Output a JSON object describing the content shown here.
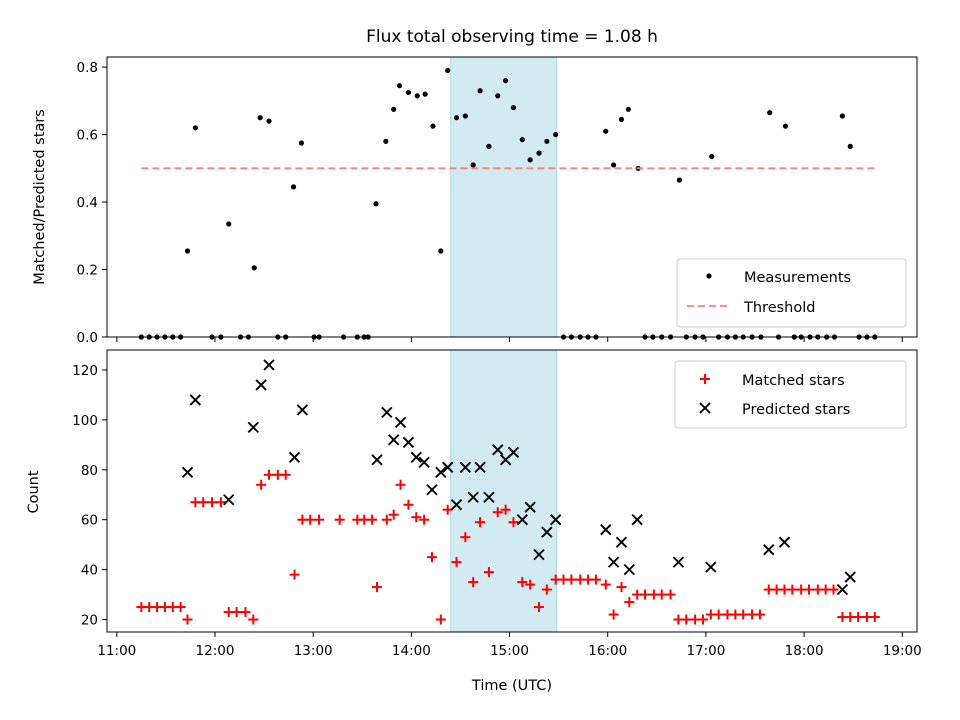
{
  "chart_data": {
    "title": "Flux total observing time = 1.08 h",
    "xlabel": "Time (UTC)",
    "x_unit": "hours UTC",
    "xlim": [
      10.9,
      19.15
    ],
    "x_ticks": [
      11,
      12,
      13,
      14,
      15,
      16,
      17,
      18,
      19
    ],
    "x_tick_labels": [
      "11:00",
      "12:00",
      "13:00",
      "14:00",
      "15:00",
      "16:00",
      "17:00",
      "18:00",
      "19:00"
    ],
    "highlight_band": {
      "x_start": 14.4,
      "x_end": 15.48,
      "color": "#add8e6"
    },
    "panels": [
      {
        "id": "ratio",
        "type": "scatter",
        "ylabel": "Matched/Predicted stars",
        "ylim": [
          0,
          0.83
        ],
        "y_ticks": [
          0.0,
          0.2,
          0.4,
          0.6,
          0.8
        ],
        "y_tick_labels": [
          "0.0",
          "0.2",
          "0.4",
          "0.6",
          "0.8"
        ],
        "legend_position": "lower-right",
        "series": [
          {
            "name": "Measurements",
            "kind": "scatter",
            "marker": "dot",
            "color": "#000000",
            "points": [
              [
                11.25,
                0
              ],
              [
                11.33,
                0
              ],
              [
                11.41,
                0
              ],
              [
                11.49,
                0
              ],
              [
                11.57,
                0
              ],
              [
                11.65,
                0
              ],
              [
                11.72,
                0.255
              ],
              [
                11.8,
                0.62
              ],
              [
                11.97,
                0
              ],
              [
                12.06,
                0
              ],
              [
                12.14,
                0.335
              ],
              [
                12.26,
                0
              ],
              [
                12.34,
                0
              ],
              [
                12.4,
                0.205
              ],
              [
                12.46,
                0.65
              ],
              [
                12.55,
                0.64
              ],
              [
                12.64,
                0
              ],
              [
                12.72,
                0
              ],
              [
                12.8,
                0.445
              ],
              [
                12.88,
                0.575
              ],
              [
                13.01,
                0
              ],
              [
                13.06,
                0
              ],
              [
                13.31,
                0
              ],
              [
                13.45,
                0
              ],
              [
                13.52,
                0
              ],
              [
                13.56,
                0
              ],
              [
                13.64,
                0.395
              ],
              [
                13.74,
                0.58
              ],
              [
                13.82,
                0.675
              ],
              [
                13.88,
                0.745
              ],
              [
                13.97,
                0.725
              ],
              [
                14.06,
                0.715
              ],
              [
                14.14,
                0.72
              ],
              [
                14.22,
                0.625
              ],
              [
                14.3,
                0.255
              ],
              [
                14.37,
                0.79
              ],
              [
                14.46,
                0.65
              ],
              [
                14.55,
                0.655
              ],
              [
                14.63,
                0.51
              ],
              [
                14.7,
                0.73
              ],
              [
                14.79,
                0.565
              ],
              [
                14.88,
                0.715
              ],
              [
                14.96,
                0.76
              ],
              [
                15.04,
                0.68
              ],
              [
                15.13,
                0.585
              ],
              [
                15.21,
                0.525
              ],
              [
                15.3,
                0.545
              ],
              [
                15.38,
                0.58
              ],
              [
                15.47,
                0.6
              ],
              [
                15.55,
                0
              ],
              [
                15.63,
                0
              ],
              [
                15.72,
                0
              ],
              [
                15.8,
                0
              ],
              [
                15.88,
                0
              ],
              [
                15.98,
                0.61
              ],
              [
                16.06,
                0.51
              ],
              [
                16.14,
                0.645
              ],
              [
                16.21,
                0.675
              ],
              [
                16.31,
                0.5
              ],
              [
                16.38,
                0
              ],
              [
                16.46,
                0
              ],
              [
                16.55,
                0
              ],
              [
                16.64,
                0
              ],
              [
                16.73,
                0.465
              ],
              [
                16.8,
                0
              ],
              [
                16.89,
                0
              ],
              [
                16.97,
                0
              ],
              [
                17.06,
                0.535
              ],
              [
                17.13,
                0
              ],
              [
                17.22,
                0
              ],
              [
                17.3,
                0
              ],
              [
                17.38,
                0
              ],
              [
                17.47,
                0
              ],
              [
                17.56,
                0
              ],
              [
                17.65,
                0.665
              ],
              [
                17.74,
                0
              ],
              [
                17.81,
                0.625
              ],
              [
                17.9,
                0
              ],
              [
                17.97,
                0
              ],
              [
                18.06,
                0
              ],
              [
                18.14,
                0
              ],
              [
                18.23,
                0
              ],
              [
                18.31,
                0
              ],
              [
                18.39,
                0.655
              ],
              [
                18.47,
                0.565
              ],
              [
                18.56,
                0
              ],
              [
                18.64,
                0
              ],
              [
                18.72,
                0
              ]
            ]
          },
          {
            "name": "Threshold",
            "kind": "hline",
            "y": 0.5,
            "x_range": [
              11.25,
              18.75
            ],
            "color": "#ff7f7f",
            "dash": true
          }
        ]
      },
      {
        "id": "counts",
        "type": "scatter",
        "ylabel": "Count",
        "ylim": [
          15,
          128
        ],
        "y_ticks": [
          20,
          40,
          60,
          80,
          100,
          120
        ],
        "y_tick_labels": [
          "20",
          "40",
          "60",
          "80",
          "100",
          "120"
        ],
        "legend_position": "upper-right",
        "series": [
          {
            "name": "Matched stars",
            "kind": "scatter",
            "marker": "plus",
            "color": "#ff0000",
            "points": [
              [
                11.25,
                25
              ],
              [
                11.33,
                25
              ],
              [
                11.41,
                25
              ],
              [
                11.49,
                25
              ],
              [
                11.57,
                25
              ],
              [
                11.65,
                25
              ],
              [
                11.72,
                20
              ],
              [
                11.8,
                67
              ],
              [
                11.88,
                67
              ],
              [
                11.97,
                67
              ],
              [
                12.06,
                67
              ],
              [
                12.14,
                23
              ],
              [
                12.22,
                23
              ],
              [
                12.31,
                23
              ],
              [
                12.39,
                20
              ],
              [
                12.47,
                74
              ],
              [
                12.55,
                78
              ],
              [
                12.64,
                78
              ],
              [
                12.72,
                78
              ],
              [
                12.81,
                38
              ],
              [
                12.89,
                60
              ],
              [
                12.97,
                60
              ],
              [
                13.06,
                60
              ],
              [
                13.27,
                60
              ],
              [
                13.45,
                60
              ],
              [
                13.52,
                60
              ],
              [
                13.6,
                60
              ],
              [
                13.65,
                33
              ],
              [
                13.75,
                60
              ],
              [
                13.82,
                62
              ],
              [
                13.89,
                74
              ],
              [
                13.97,
                66
              ],
              [
                14.05,
                61
              ],
              [
                14.13,
                60
              ],
              [
                14.21,
                45
              ],
              [
                14.3,
                20
              ],
              [
                14.37,
                64
              ],
              [
                14.46,
                43
              ],
              [
                14.55,
                53
              ],
              [
                14.63,
                35
              ],
              [
                14.7,
                59
              ],
              [
                14.79,
                39
              ],
              [
                14.88,
                63
              ],
              [
                14.96,
                64
              ],
              [
                15.04,
                59
              ],
              [
                15.13,
                35
              ],
              [
                15.21,
                34
              ],
              [
                15.3,
                25
              ],
              [
                15.38,
                32
              ],
              [
                15.47,
                36
              ],
              [
                15.55,
                36
              ],
              [
                15.63,
                36
              ],
              [
                15.72,
                36
              ],
              [
                15.8,
                36
              ],
              [
                15.88,
                36
              ],
              [
                15.98,
                34
              ],
              [
                16.06,
                22
              ],
              [
                16.14,
                33
              ],
              [
                16.22,
                27
              ],
              [
                16.3,
                30
              ],
              [
                16.38,
                30
              ],
              [
                16.47,
                30
              ],
              [
                16.55,
                30
              ],
              [
                16.64,
                30
              ],
              [
                16.72,
                20
              ],
              [
                16.8,
                20
              ],
              [
                16.89,
                20
              ],
              [
                16.97,
                20
              ],
              [
                17.05,
                22
              ],
              [
                17.13,
                22
              ],
              [
                17.22,
                22
              ],
              [
                17.3,
                22
              ],
              [
                17.38,
                22
              ],
              [
                17.47,
                22
              ],
              [
                17.55,
                22
              ],
              [
                17.64,
                32
              ],
              [
                17.72,
                32
              ],
              [
                17.8,
                32
              ],
              [
                17.88,
                32
              ],
              [
                17.97,
                32
              ],
              [
                18.05,
                32
              ],
              [
                18.14,
                32
              ],
              [
                18.22,
                32
              ],
              [
                18.3,
                32
              ],
              [
                18.39,
                21
              ],
              [
                18.47,
                21
              ],
              [
                18.55,
                21
              ],
              [
                18.64,
                21
              ],
              [
                18.72,
                21
              ]
            ]
          },
          {
            "name": "Predicted stars",
            "kind": "scatter",
            "marker": "x",
            "color": "#000000",
            "points": [
              [
                11.72,
                79
              ],
              [
                11.8,
                108
              ],
              [
                12.14,
                68
              ],
              [
                12.39,
                97
              ],
              [
                12.47,
                114
              ],
              [
                12.55,
                122
              ],
              [
                12.81,
                85
              ],
              [
                12.89,
                104
              ],
              [
                13.65,
                84
              ],
              [
                13.75,
                103
              ],
              [
                13.82,
                92
              ],
              [
                13.89,
                99
              ],
              [
                13.97,
                91
              ],
              [
                14.05,
                85
              ],
              [
                14.13,
                83
              ],
              [
                14.21,
                72
              ],
              [
                14.3,
                79
              ],
              [
                14.37,
                81
              ],
              [
                14.46,
                66
              ],
              [
                14.55,
                81
              ],
              [
                14.63,
                69
              ],
              [
                14.7,
                81
              ],
              [
                14.79,
                69
              ],
              [
                14.88,
                88
              ],
              [
                14.96,
                84
              ],
              [
                15.04,
                87
              ],
              [
                15.13,
                60
              ],
              [
                15.21,
                65
              ],
              [
                15.3,
                46
              ],
              [
                15.38,
                55
              ],
              [
                15.47,
                60
              ],
              [
                15.98,
                56
              ],
              [
                16.06,
                43
              ],
              [
                16.14,
                51
              ],
              [
                16.22,
                40
              ],
              [
                16.3,
                60
              ],
              [
                16.72,
                43
              ],
              [
                17.05,
                41
              ],
              [
                17.64,
                48
              ],
              [
                17.8,
                51
              ],
              [
                18.39,
                32
              ],
              [
                18.47,
                37
              ]
            ]
          }
        ]
      }
    ]
  }
}
